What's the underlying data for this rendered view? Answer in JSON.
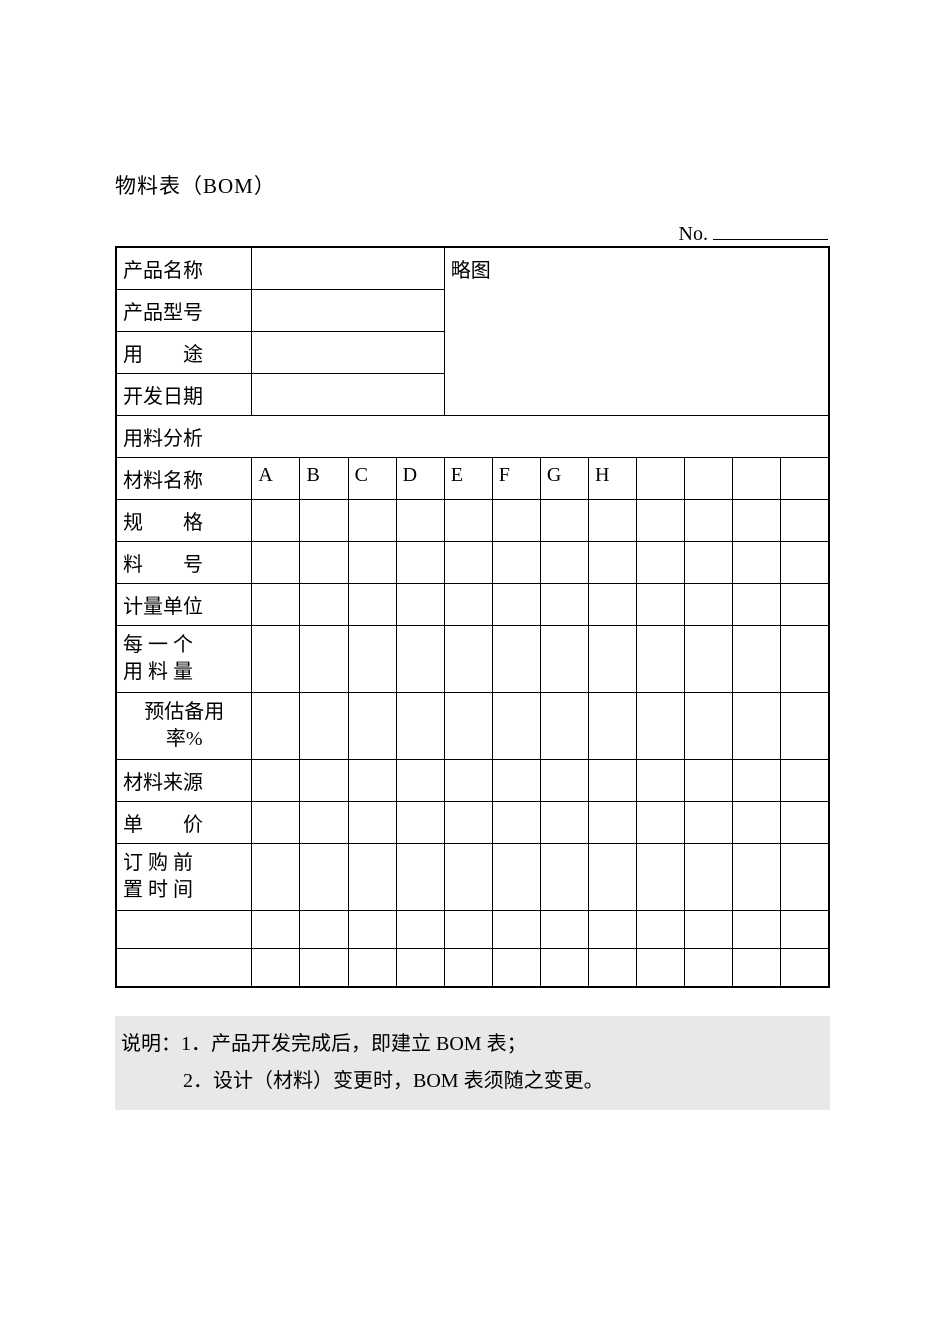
{
  "title": "物料表（BOM）",
  "no_label": "No.",
  "header": {
    "product_name_label": "产品名称",
    "product_model_label": "产品型号",
    "usage_label": "用　　途",
    "dev_date_label": "开发日期",
    "sketch_label": "略图",
    "product_name": "",
    "product_model": "",
    "usage": "",
    "dev_date": ""
  },
  "analysis_label": "用料分析",
  "rows": {
    "material_name": "材料名称",
    "spec": "规　　格",
    "part_no": "料　　号",
    "unit": "计量单位",
    "per_unit_qty_l1": "每 一 个",
    "per_unit_qty_l2": "用 料 量",
    "reserve_rate_l1": "预估备用",
    "reserve_rate_l2": "率%",
    "source": "材料来源",
    "price": "单　　价",
    "lead_time_l1": "订 购 前",
    "lead_time_l2": "置 时 间"
  },
  "columns": [
    "A",
    "B",
    "C",
    "D",
    "E",
    "F",
    "G",
    "H",
    "",
    "",
    "",
    ""
  ],
  "notes": {
    "line1": "说明：1．产品开发完成后，即建立 BOM 表；",
    "line2": "2．设计（材料）变更时，BOM 表须随之变更。"
  }
}
